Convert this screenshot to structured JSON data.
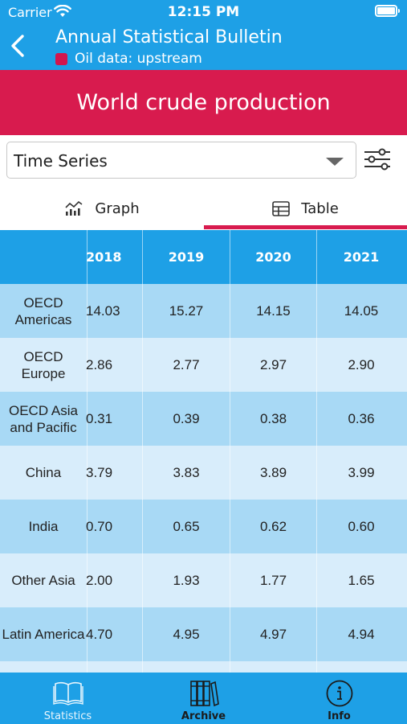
{
  "status_bar": {
    "carrier": "Carrier",
    "time": "12:15 PM"
  },
  "nav": {
    "title": "Annual Statistical Bulletin",
    "subtitle": "Oil data: upstream",
    "subtitle_color": "#d3154d"
  },
  "banner": {
    "title": "World crude production",
    "color": "#d81b4e"
  },
  "selector": {
    "value": "Time Series"
  },
  "tabs": [
    {
      "label": "Graph",
      "icon": "chart-icon",
      "active": false
    },
    {
      "label": "Table",
      "icon": "table-icon",
      "active": true
    }
  ],
  "table": {
    "columns": [
      "",
      "2018",
      "2019",
      "2020",
      "2021"
    ],
    "rows": [
      {
        "region": "OECD Americas",
        "values": [
          "14.03",
          "15.27",
          "14.15",
          "14.05"
        ]
      },
      {
        "region": "OECD Europe",
        "values": [
          "2.86",
          "2.77",
          "2.97",
          "2.90"
        ]
      },
      {
        "region": "OECD Asia and Pacific",
        "values": [
          "0.31",
          "0.39",
          "0.38",
          "0.36"
        ]
      },
      {
        "region": "China",
        "values": [
          "3.79",
          "3.83",
          "3.89",
          "3.99"
        ]
      },
      {
        "region": "India",
        "values": [
          "0.70",
          "0.65",
          "0.62",
          "0.60"
        ]
      },
      {
        "region": "Other Asia",
        "values": [
          "2.00",
          "1.93",
          "1.77",
          "1.65"
        ]
      },
      {
        "region": "Latin America",
        "values": [
          "4.70",
          "4.95",
          "4.97",
          "4.94"
        ]
      }
    ],
    "header_color": "#1ea0e6",
    "row_colors": [
      "#a8d9f5",
      "#d8edfb"
    ]
  },
  "tabbar": [
    {
      "label": "Statistics",
      "icon": "open-book-icon",
      "active": false
    },
    {
      "label": "Archive",
      "icon": "books-icon",
      "active": true
    },
    {
      "label": "Info",
      "icon": "info-icon",
      "active": false
    }
  ],
  "colors": {
    "accent_blue": "#1ea0e6",
    "accent_red": "#d81b4e"
  }
}
